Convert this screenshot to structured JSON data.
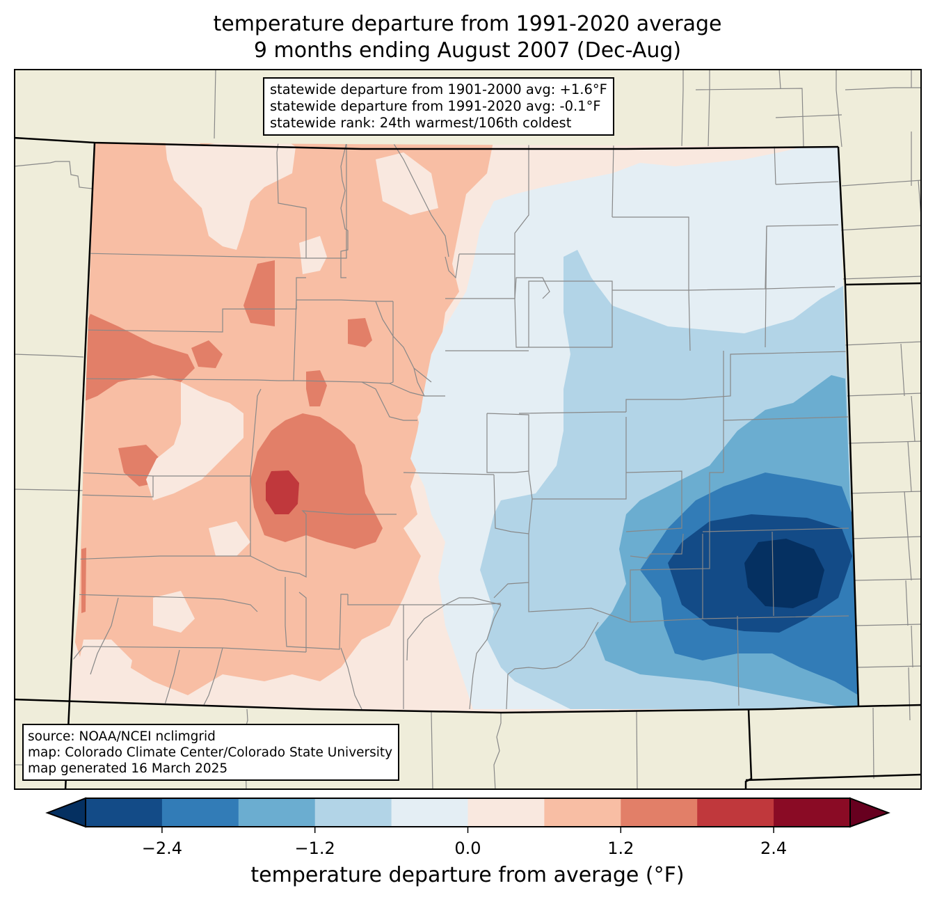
{
  "title": {
    "line1": "temperature departure from 1991-2020 average",
    "line2": "9 months ending August 2007 (Dec-Aug)"
  },
  "stats_box": {
    "line1": "statewide departure from 1901-2000 avg: +1.6°F",
    "line2": "statewide departure from 1991-2020 avg: -0.1°F",
    "line3": "statewide rank: 24th warmest/106th coldest"
  },
  "source_box": {
    "line1": "source: NOAA/NCEI nclimgrid",
    "line2": "map: Colorado Climate Center/Colorado State University",
    "line3": "map generated 16 March 2025"
  },
  "colorbar": {
    "label": "temperature departure from average (°F)",
    "min": -3.0,
    "max": 3.0,
    "step": 0.6,
    "extend": "both",
    "ticks": [
      "−2.4",
      "−1.2",
      "0.0",
      "1.2",
      "2.4"
    ],
    "tick_values": [
      -2.4,
      -1.2,
      0.0,
      1.2,
      2.4
    ],
    "under_color": "#053061",
    "over_color": "#67001f",
    "bins": [
      {
        "from": -3.0,
        "to": -2.4,
        "color": "#134b87"
      },
      {
        "from": -2.4,
        "to": -1.8,
        "color": "#327cb7"
      },
      {
        "from": -1.8,
        "to": -1.2,
        "color": "#6badd0"
      },
      {
        "from": -1.2,
        "to": -0.6,
        "color": "#b2d4e7"
      },
      {
        "from": -0.6,
        "to": 0.0,
        "color": "#e4eef4"
      },
      {
        "from": 0.0,
        "to": 0.6,
        "color": "#f9e8df"
      },
      {
        "from": 0.6,
        "to": 1.2,
        "color": "#f8bea4"
      },
      {
        "from": 1.2,
        "to": 1.8,
        "color": "#e27f68"
      },
      {
        "from": 1.8,
        "to": 2.4,
        "color": "#c0383c"
      },
      {
        "from": 2.4,
        "to": 3.0,
        "color": "#8a0b25"
      }
    ]
  },
  "map": {
    "background_color": "#efedda",
    "state_border_color": "#000000",
    "county_border_color": "#888888",
    "regions": [
      {
        "name": "statewide-baseline",
        "bin": 5
      },
      {
        "name": "west-warm",
        "bin": 6
      },
      {
        "name": "northeast-cool",
        "bin": 4
      },
      {
        "name": "east-cooler",
        "bin": 3
      },
      {
        "name": "southeast-cold",
        "bin": 2
      },
      {
        "name": "southeast-colder",
        "bin": 1
      },
      {
        "name": "southeast-coldest",
        "bin": 0
      },
      {
        "name": "southeast-core",
        "under": true
      },
      {
        "name": "central-warm-hotspot",
        "bin": 7
      },
      {
        "name": "central-hottest",
        "bin": 8
      },
      {
        "name": "northwest-warm-patches",
        "bin": 7
      }
    ]
  }
}
